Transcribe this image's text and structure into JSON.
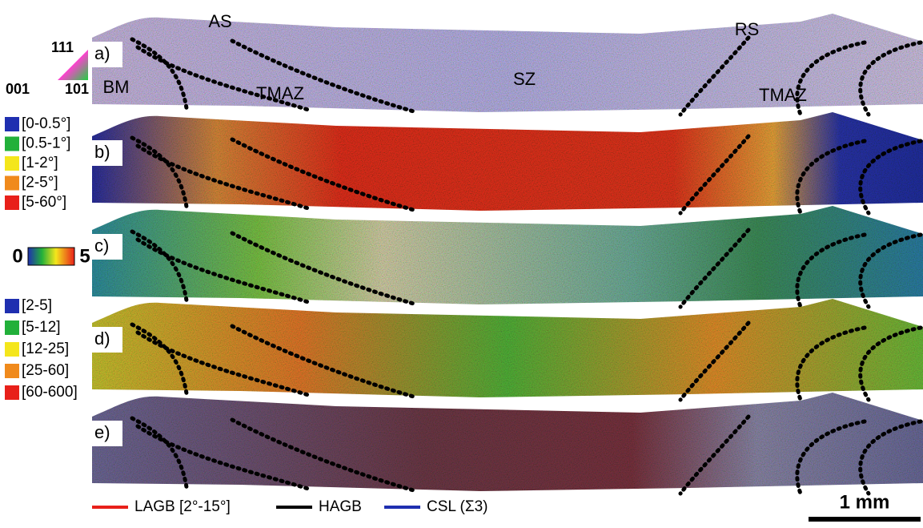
{
  "panels": [
    {
      "label": "a)"
    },
    {
      "label": "b)"
    },
    {
      "label": "c)"
    },
    {
      "label": "d)"
    },
    {
      "label": "e)"
    }
  ],
  "annotations": {
    "as": "AS",
    "rs": "RS",
    "bm": "BM",
    "tmaz_left": "TMAZ",
    "sz": "SZ",
    "tmaz_right": "TMAZ"
  },
  "ipf_legend": {
    "top": "111",
    "left": "001",
    "right": "101"
  },
  "misorientation_legend": [
    {
      "label": "[0-0.5°]",
      "color": "#1f2fb0"
    },
    {
      "label": "[0.5-1°]",
      "color": "#22b03a"
    },
    {
      "label": "[1-2°]",
      "color": "#f4e61c"
    },
    {
      "label": "[2-5°]",
      "color": "#f08a1c"
    },
    {
      "label": "[5-60°]",
      "color": "#e8201a"
    }
  ],
  "colorbar": {
    "min_label": "0",
    "max_label": "5"
  },
  "grain_size_legend": [
    {
      "label": "[2-5]",
      "color": "#1f2fb0"
    },
    {
      "label": "[5-12]",
      "color": "#22b03a"
    },
    {
      "label": "[12-25]",
      "color": "#f4e61c"
    },
    {
      "label": "[25-60]",
      "color": "#f08a1c"
    },
    {
      "label": "[60-600]",
      "color": "#e8201a"
    }
  ],
  "boundary_legend": [
    {
      "label": "LAGB [2°-15°]",
      "color": "#e8201a"
    },
    {
      "label": "HAGB",
      "color": "#000000"
    },
    {
      "label": "CSL (Σ3)",
      "color": "#1f2fb0"
    }
  ],
  "scale_bar": "1 mm"
}
